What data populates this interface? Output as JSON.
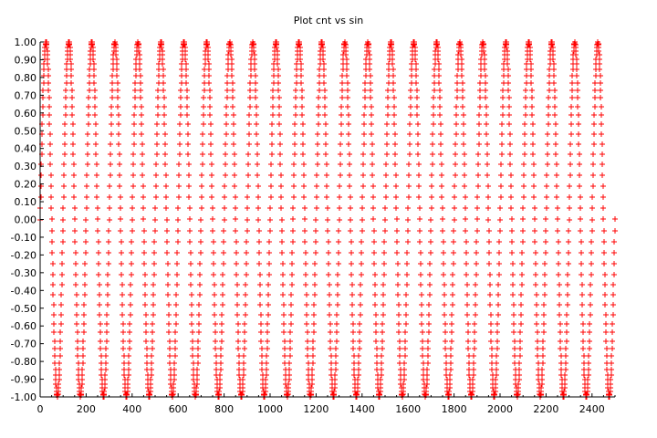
{
  "chart_data": {
    "type": "scatter",
    "title": "Plot cnt vs sin",
    "xlabel": "",
    "ylabel": "",
    "xlim": [
      0,
      2500
    ],
    "ylim": [
      -1.0,
      1.0
    ],
    "x_ticks": [
      0,
      200,
      400,
      600,
      800,
      1000,
      1200,
      1400,
      1600,
      1800,
      2000,
      2200,
      2400
    ],
    "x_tick_labels": [
      "0",
      "200",
      "400",
      "600",
      "800",
      "1000",
      "1200",
      "1400",
      "1600",
      "1800",
      "2000",
      "2200",
      "2400"
    ],
    "y_ticks": [
      1.0,
      0.9,
      0.8,
      0.7,
      0.6,
      0.5,
      0.4,
      0.3,
      0.2,
      0.1,
      0.0,
      -0.1,
      -0.2,
      -0.3,
      -0.4,
      -0.5,
      -0.6,
      -0.7,
      -0.8,
      -0.9,
      -1.0
    ],
    "y_tick_labels": [
      "1.00",
      "0.90",
      "0.80",
      "0.70",
      "0.60",
      "0.50",
      "0.40",
      "0.30",
      "0.20",
      "0.10",
      "0.00",
      "-0.10",
      "-0.20",
      "-0.30",
      "-0.40",
      "-0.50",
      "-0.60",
      "-0.70",
      "-0.80",
      "-0.90",
      "-1.00"
    ],
    "grid": false,
    "legend": "none",
    "marker": "plus",
    "series": [
      {
        "color": "#ff0000",
        "x_start": 0,
        "x_end": 2500,
        "x_step": 1,
        "y_function": "sin(2*pi*x/100)",
        "period": 100,
        "amplitude": 1.0
      }
    ]
  }
}
